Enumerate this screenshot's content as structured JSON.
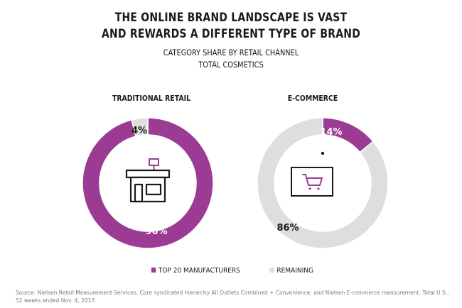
{
  "title_lines": [
    "THE ONLINE BRAND LANDSCAPE IS VAST",
    "AND REWARDS A DIFFERENT TYPE OF BRAND"
  ],
  "subtitle_lines": [
    "CATEGORY SHARE BY RETAIL CHANNEL",
    "TOTAL COSMETICS"
  ],
  "colors": {
    "top20": "#9b3b93",
    "remaining": "#dedede",
    "icon_line": "#1a1a1a"
  },
  "icons": {
    "traditional_retail": "storefront-icon",
    "e_commerce": "monitor-shopping-cart-icon"
  },
  "chart_data": [
    {
      "type": "pie",
      "donut": true,
      "title": "TRADITIONAL RETAIL",
      "categories": [
        "TOP 20 MANUFACTURERS",
        "REMAINING"
      ],
      "values": [
        96,
        4
      ],
      "labels": [
        "96%",
        "4%"
      ]
    },
    {
      "type": "pie",
      "donut": true,
      "title": "E-COMMERCE",
      "categories": [
        "TOP 20 MANUFACTURERS",
        "REMAINING"
      ],
      "values": [
        14,
        86
      ],
      "labels": [
        "14%",
        "86%"
      ]
    }
  ],
  "legend": [
    {
      "label": "TOP 20 MANUFACTURERS"
    },
    {
      "label": "REMAINING"
    }
  ],
  "source_text": "Source: Nielsen Retail Measurement Services, Core syndicated hierarchy All Outlets Combined + Convenience, and Nielsen E-commerce measurement, Total U.S., 52 weeks ended Nov. 4, 2017."
}
